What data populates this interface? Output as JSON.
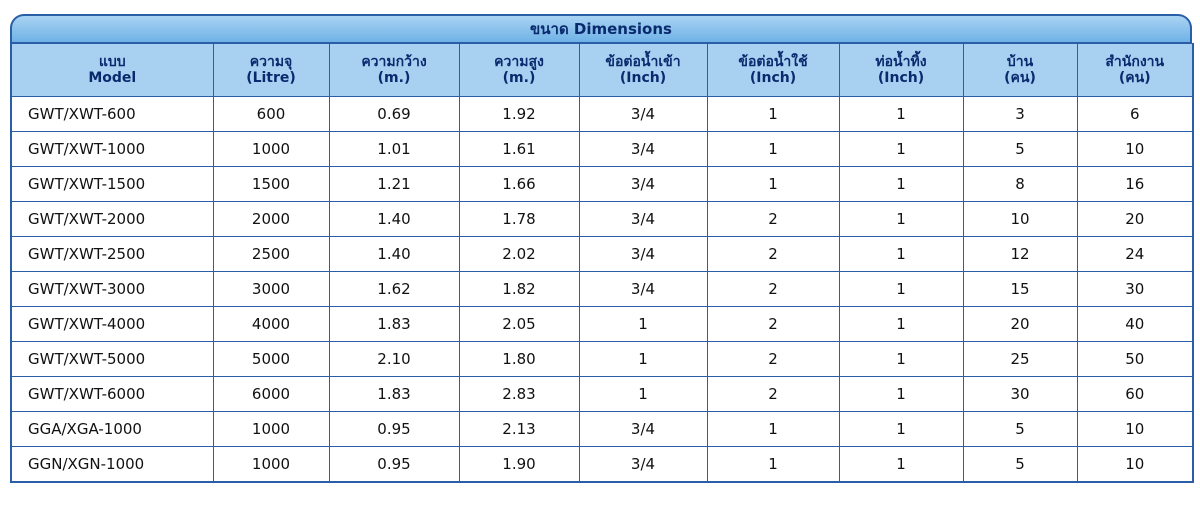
{
  "table": {
    "title": "ขนาด Dimensions",
    "header": [
      [
        "แบบ",
        "Model"
      ],
      [
        "ความจุ",
        "(Litre)"
      ],
      [
        "ความกว้าง",
        "(m.)"
      ],
      [
        "ความสูง",
        "(m.)"
      ],
      [
        "ข้อต่อน้ำเข้า",
        "(Inch)"
      ],
      [
        "ข้อต่อน้ำใช้",
        "(Inch)"
      ],
      [
        "ท่อน้ำทิ้ง",
        "(Inch)"
      ],
      [
        "บ้าน",
        "(คน)"
      ],
      [
        "สำนักงาน",
        "(คน)"
      ]
    ],
    "rows": [
      [
        "GWT/XWT-600",
        "600",
        "0.69",
        "1.92",
        "3/4",
        "1",
        "1",
        "3",
        "6"
      ],
      [
        "GWT/XWT-1000",
        "1000",
        "1.01",
        "1.61",
        "3/4",
        "1",
        "1",
        "5",
        "10"
      ],
      [
        "GWT/XWT-1500",
        "1500",
        "1.21",
        "1.66",
        "3/4",
        "1",
        "1",
        "8",
        "16"
      ],
      [
        "GWT/XWT-2000",
        "2000",
        "1.40",
        "1.78",
        "3/4",
        "2",
        "1",
        "10",
        "20"
      ],
      [
        "GWT/XWT-2500",
        "2500",
        "1.40",
        "2.02",
        "3/4",
        "2",
        "1",
        "12",
        "24"
      ],
      [
        "GWT/XWT-3000",
        "3000",
        "1.62",
        "1.82",
        "3/4",
        "2",
        "1",
        "15",
        "30"
      ],
      [
        "GWT/XWT-4000",
        "4000",
        "1.83",
        "2.05",
        "1",
        "2",
        "1",
        "20",
        "40"
      ],
      [
        "GWT/XWT-5000",
        "5000",
        "2.10",
        "1.80",
        "1",
        "2",
        "1",
        "25",
        "50"
      ],
      [
        "GWT/XWT-6000",
        "6000",
        "1.83",
        "2.83",
        "1",
        "2",
        "1",
        "30",
        "60"
      ],
      [
        "GGA/XGA-1000",
        "1000",
        "0.95",
        "2.13",
        "3/4",
        "1",
        "1",
        "5",
        "10"
      ],
      [
        "GGN/XGN-1000",
        "1000",
        "0.95",
        "1.90",
        "3/4",
        "1",
        "1",
        "5",
        "10"
      ]
    ]
  }
}
